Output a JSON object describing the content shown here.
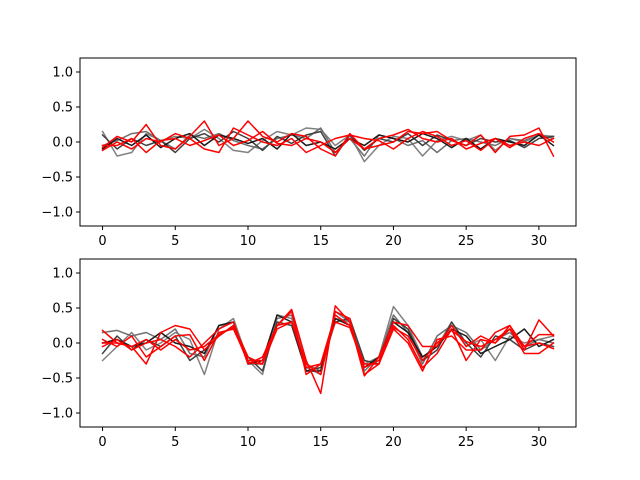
{
  "chart_data": [
    {
      "type": "line",
      "title": "",
      "xlabel": "",
      "ylabel": "",
      "xlim": [
        -1.55,
        32.55
      ],
      "ylim": [
        -1.2,
        1.2
      ],
      "xticks": [
        0,
        5,
        10,
        15,
        20,
        25,
        30
      ],
      "yticks": [
        -1.0,
        -0.5,
        0.0,
        0.5,
        1.0
      ],
      "xtick_labels": [
        "0",
        "5",
        "10",
        "15",
        "20",
        "25",
        "30"
      ],
      "ytick_labels": [
        "−1.0",
        "−0.5",
        "0.0",
        "0.5",
        "1.0"
      ],
      "grid": false,
      "legend": "none",
      "x": [
        0,
        1,
        2,
        3,
        4,
        5,
        6,
        7,
        8,
        9,
        10,
        11,
        12,
        13,
        14,
        15,
        16,
        17,
        18,
        19,
        20,
        21,
        22,
        23,
        24,
        25,
        26,
        27,
        28,
        29,
        30,
        31
      ],
      "series": [
        {
          "color": "#808080",
          "values": [
            0.15,
            -0.2,
            -0.15,
            0.12,
            0.02,
            0.08,
            0.05,
            0.18,
            0.05,
            -0.12,
            -0.15,
            0.02,
            0.15,
            0.1,
            0.2,
            0.18,
            -0.05,
            0.1,
            -0.28,
            -0.05,
            0.08,
            0.05,
            -0.2,
            0.02,
            0.08,
            0.02,
            0.1,
            -0.12,
            0.05,
            0.0,
            0.1,
            0.08
          ]
        },
        {
          "color": "#707070",
          "values": [
            -0.05,
            0.02,
            0.12,
            0.15,
            0.02,
            -0.1,
            0.1,
            0.05,
            0.12,
            0.02,
            -0.05,
            -0.1,
            0.05,
            0.1,
            0.05,
            0.2,
            -0.15,
            0.05,
            -0.2,
            0.1,
            0.05,
            -0.05,
            0.02,
            -0.15,
            0.02,
            0.05,
            0.0,
            -0.05,
            0.05,
            0.02,
            0.1,
            0.05
          ]
        },
        {
          "color": "#404040",
          "values": [
            0.1,
            -0.1,
            0.05,
            -0.05,
            0.02,
            -0.15,
            0.05,
            0.12,
            0.0,
            0.15,
            0.05,
            -0.12,
            0.08,
            -0.02,
            0.1,
            0.15,
            -0.2,
            0.1,
            -0.12,
            0.05,
            0.0,
            0.12,
            -0.05,
            0.1,
            0.02,
            -0.05,
            0.05,
            0.0,
            0.02,
            -0.08,
            0.05,
            0.08
          ]
        },
        {
          "color": "#1a1a1a",
          "values": [
            -0.1,
            0.05,
            -0.05,
            0.1,
            -0.08,
            0.05,
            0.12,
            -0.05,
            0.1,
            0.05,
            -0.02,
            0.05,
            -0.1,
            0.12,
            -0.05,
            0.0,
            -0.1,
            0.05,
            -0.05,
            0.1,
            0.05,
            0.0,
            0.12,
            0.05,
            -0.08,
            0.05,
            -0.1,
            0.05,
            0.0,
            -0.05,
            0.1,
            -0.05
          ]
        },
        {
          "color": "#ff0000",
          "values": [
            -0.08,
            0.08,
            0.0,
            0.25,
            -0.05,
            -0.1,
            0.08,
            0.3,
            -0.05,
            0.05,
            0.3,
            0.08,
            0.0,
            0.12,
            0.08,
            -0.1,
            -0.2,
            0.12,
            -0.1,
            -0.05,
            0.0,
            0.15,
            0.12,
            0.15,
            0.02,
            -0.05,
            0.1,
            -0.15,
            0.08,
            0.1,
            0.2,
            -0.2
          ]
        },
        {
          "color": "#ff0000",
          "values": [
            -0.12,
            0.0,
            -0.1,
            0.05,
            0.0,
            0.12,
            0.05,
            -0.1,
            -0.15,
            0.2,
            0.1,
            0.0,
            -0.05,
            0.05,
            -0.15,
            -0.05,
            0.05,
            0.1,
            0.05,
            0.02,
            -0.1,
            0.05,
            0.15,
            0.08,
            -0.05,
            0.02,
            -0.12,
            0.05,
            -0.08,
            0.05,
            0.12,
            0.0
          ]
        },
        {
          "color": "#ff0000",
          "values": [
            -0.05,
            -0.05,
            0.05,
            -0.15,
            0.02,
            0.05,
            -0.05,
            0.02,
            0.1,
            -0.05,
            0.02,
            0.15,
            -0.02,
            -0.05,
            0.05,
            0.0,
            -0.15,
            0.05,
            -0.1,
            0.05,
            0.1,
            0.18,
            0.05,
            0.0,
            0.05,
            -0.1,
            -0.02,
            0.05,
            -0.05,
            0.0,
            -0.05,
            0.05
          ]
        }
      ]
    },
    {
      "type": "line",
      "title": "",
      "xlabel": "",
      "ylabel": "",
      "xlim": [
        -1.55,
        32.55
      ],
      "ylim": [
        -1.2,
        1.2
      ],
      "xticks": [
        0,
        5,
        10,
        15,
        20,
        25,
        30
      ],
      "yticks": [
        -1.0,
        -0.5,
        0.0,
        0.5,
        1.0
      ],
      "xtick_labels": [
        "0",
        "5",
        "10",
        "15",
        "20",
        "25",
        "30"
      ],
      "ytick_labels": [
        "−1.0",
        "−0.5",
        "0.0",
        "0.5",
        "1.0"
      ],
      "grid": false,
      "legend": "none",
      "x": [
        0,
        1,
        2,
        3,
        4,
        5,
        6,
        7,
        8,
        9,
        10,
        11,
        12,
        13,
        14,
        15,
        16,
        17,
        18,
        19,
        20,
        21,
        22,
        23,
        24,
        25,
        26,
        27,
        28,
        29,
        30,
        31
      ],
      "series": [
        {
          "color": "#808080",
          "values": [
            -0.25,
            -0.05,
            0.15,
            -0.1,
            0.0,
            0.15,
            0.05,
            -0.45,
            0.2,
            0.35,
            -0.25,
            -0.45,
            0.4,
            0.35,
            -0.35,
            -0.45,
            0.35,
            0.3,
            -0.3,
            -0.2,
            0.52,
            0.25,
            -0.2,
            -0.05,
            0.3,
            -0.05,
            0.05,
            -0.25,
            0.1,
            0.0,
            0.05,
            0.1
          ]
        },
        {
          "color": "#707070",
          "values": [
            0.15,
            0.18,
            0.1,
            0.15,
            0.05,
            0.2,
            -0.15,
            -0.2,
            0.25,
            0.3,
            -0.3,
            -0.3,
            0.35,
            0.4,
            -0.3,
            -0.4,
            0.45,
            0.3,
            -0.4,
            -0.2,
            0.4,
            0.15,
            -0.3,
            0.1,
            0.25,
            0.15,
            -0.1,
            0.05,
            0.15,
            -0.05,
            0.05,
            0.0
          ]
        },
        {
          "color": "#404040",
          "values": [
            -0.15,
            0.1,
            -0.1,
            0.05,
            -0.05,
            0.1,
            -0.25,
            -0.1,
            0.1,
            0.25,
            -0.2,
            -0.4,
            0.3,
            0.25,
            -0.4,
            -0.35,
            0.3,
            0.35,
            -0.25,
            -0.3,
            0.35,
            0.2,
            -0.25,
            -0.1,
            0.3,
            0.0,
            -0.2,
            0.1,
            0.05,
            -0.1,
            0.0,
            -0.05
          ]
        },
        {
          "color": "#1a1a1a",
          "values": [
            0.0,
            0.05,
            -0.05,
            0.0,
            0.15,
            0.0,
            -0.05,
            -0.15,
            0.25,
            0.3,
            -0.3,
            -0.25,
            0.4,
            0.3,
            -0.4,
            -0.4,
            0.35,
            0.25,
            -0.35,
            -0.2,
            0.3,
            0.15,
            -0.2,
            -0.05,
            0.2,
            0.1,
            -0.15,
            -0.05,
            0.05,
            0.2,
            -0.05,
            0.05
          ]
        },
        {
          "color": "#ff0000",
          "values": [
            0.18,
            0.0,
            -0.05,
            -0.3,
            0.15,
            0.25,
            0.2,
            -0.1,
            0.1,
            0.25,
            -0.2,
            -0.3,
            0.25,
            0.48,
            -0.25,
            -0.72,
            0.53,
            0.3,
            -0.47,
            -0.2,
            0.3,
            0.25,
            -0.05,
            -0.05,
            0.25,
            -0.05,
            0.1,
            0.0,
            0.25,
            -0.1,
            0.33,
            0.1
          ]
        },
        {
          "color": "#ff0000",
          "values": [
            0.05,
            -0.05,
            0.1,
            -0.2,
            -0.05,
            0.1,
            0.12,
            -0.25,
            0.15,
            0.2,
            -0.25,
            -0.25,
            0.25,
            0.3,
            -0.3,
            -0.45,
            0.45,
            0.35,
            -0.45,
            -0.3,
            0.25,
            0.05,
            -0.35,
            -0.15,
            0.2,
            -0.25,
            0.05,
            0.0,
            0.2,
            -0.15,
            -0.15,
            0.0
          ]
        },
        {
          "color": "#ff0000",
          "values": [
            -0.05,
            0.05,
            -0.1,
            0.0,
            0.05,
            -0.05,
            -0.2,
            0.0,
            0.2,
            0.3,
            -0.3,
            -0.2,
            0.25,
            0.45,
            -0.45,
            -0.3,
            0.4,
            0.25,
            -0.3,
            -0.3,
            0.2,
            0.0,
            -0.4,
            0.05,
            0.1,
            -0.1,
            -0.1,
            0.15,
            0.25,
            -0.05,
            0.12,
            0.12
          ]
        },
        {
          "color": "#ff0000",
          "values": [
            0.0,
            0.0,
            -0.05,
            0.05,
            -0.1,
            0.05,
            -0.1,
            -0.05,
            0.12,
            0.22,
            -0.28,
            -0.3,
            0.2,
            0.3,
            -0.35,
            -0.3,
            0.3,
            0.22,
            -0.35,
            -0.25,
            0.22,
            0.1,
            -0.25,
            0.0,
            0.18,
            0.02,
            -0.05,
            0.05,
            0.2,
            -0.05,
            0.0,
            -0.08
          ]
        }
      ]
    }
  ]
}
